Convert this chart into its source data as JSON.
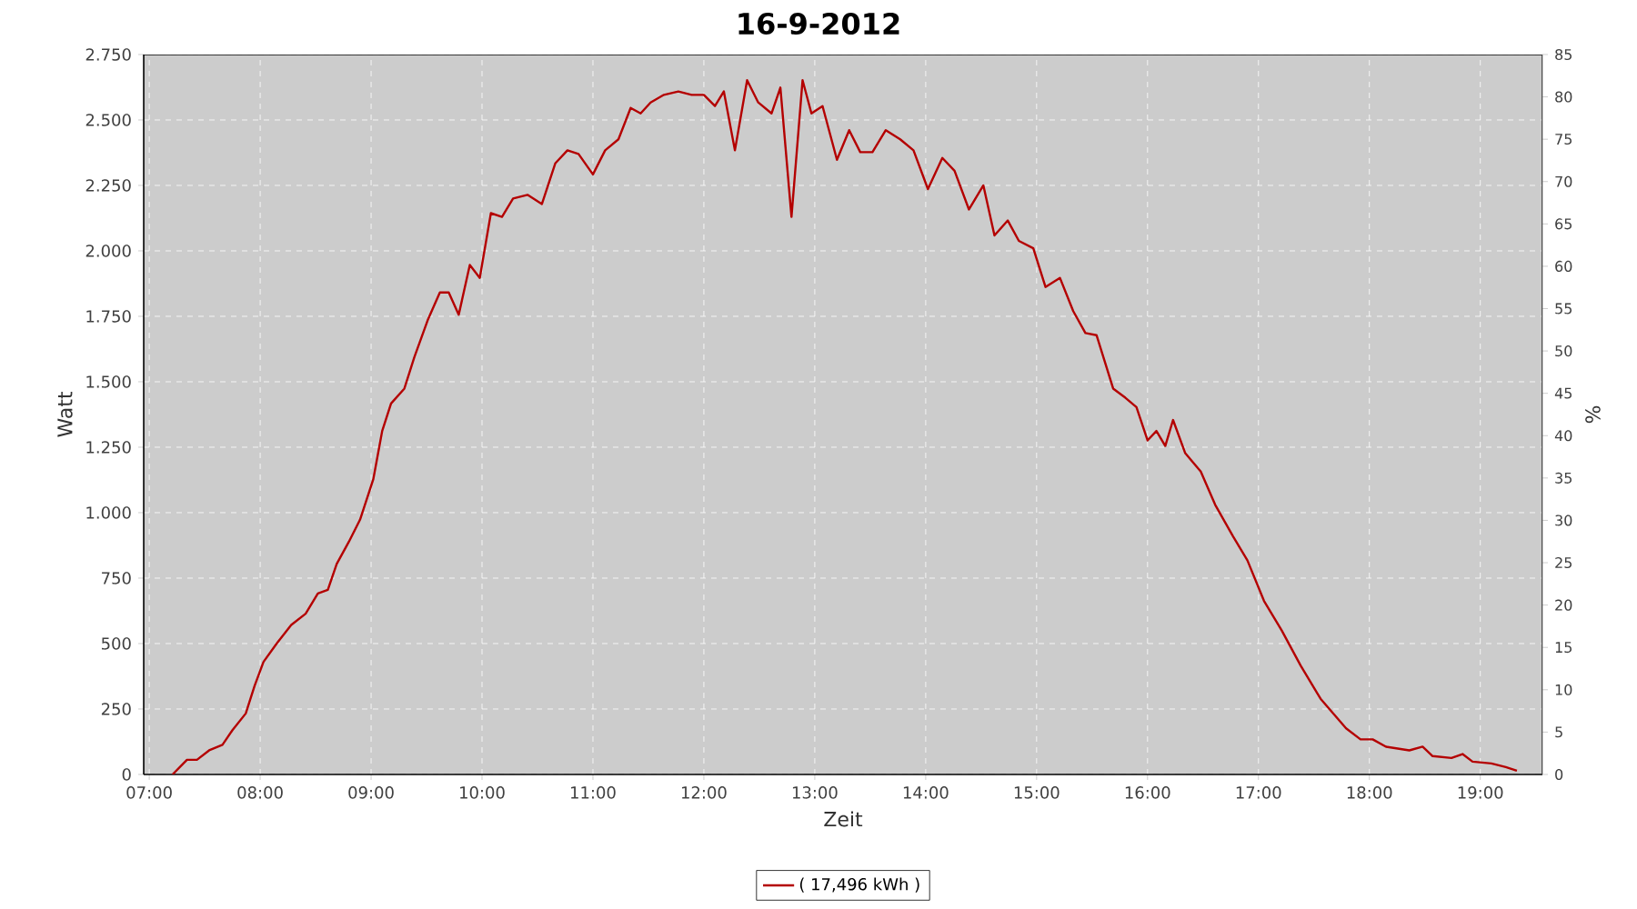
{
  "chart_data": {
    "type": "line",
    "title": "16-9-2012",
    "xlabel": "Zeit",
    "ylabel": "Watt",
    "y2label": "%",
    "x": [
      7.21,
      7.34,
      7.43,
      7.54,
      7.66,
      7.75,
      7.87,
      7.95,
      8.03,
      8.15,
      8.28,
      8.41,
      8.52,
      8.61,
      8.69,
      8.8,
      8.9,
      9.02,
      9.1,
      9.18,
      9.3,
      9.39,
      9.51,
      9.62,
      9.7,
      9.79,
      9.89,
      9.98,
      10.08,
      10.18,
      10.28,
      10.41,
      10.54,
      10.66,
      10.77,
      10.87,
      11.0,
      11.11,
      11.23,
      11.34,
      11.43,
      11.52,
      11.64,
      11.77,
      11.89,
      12.0,
      12.1,
      12.18,
      12.28,
      12.39,
      12.49,
      12.61,
      12.69,
      12.79,
      12.89,
      12.97,
      13.07,
      13.2,
      13.31,
      13.41,
      13.52,
      13.64,
      13.77,
      13.89,
      14.02,
      14.15,
      14.26,
      14.39,
      14.52,
      14.62,
      14.74,
      14.84,
      14.97,
      15.08,
      15.21,
      15.33,
      15.44,
      15.54,
      15.69,
      15.8,
      15.9,
      16.0,
      16.08,
      16.16,
      16.23,
      16.34,
      16.48,
      16.61,
      16.77,
      16.9,
      17.05,
      17.21,
      17.38,
      17.56,
      17.79,
      17.92,
      18.03,
      18.15,
      18.36,
      18.48,
      18.57,
      18.74,
      18.84,
      18.93,
      19.1,
      19.23,
      19.33
    ],
    "series": [
      {
        "name": "( 17,496 kWh )",
        "color": "#b40000",
        "values": [
          0,
          56,
          56,
          92,
          113,
          169,
          233,
          339,
          430,
          501,
          571,
          614,
          691,
          705,
          804,
          889,
          973,
          1128,
          1312,
          1417,
          1474,
          1594,
          1735,
          1841,
          1841,
          1756,
          1946,
          1897,
          2144,
          2130,
          2200,
          2214,
          2179,
          2334,
          2384,
          2370,
          2292,
          2384,
          2426,
          2546,
          2525,
          2567,
          2596,
          2609,
          2596,
          2596,
          2553,
          2609,
          2384,
          2652,
          2567,
          2525,
          2624,
          2130,
          2652,
          2525,
          2553,
          2348,
          2461,
          2377,
          2377,
          2461,
          2426,
          2384,
          2236,
          2355,
          2306,
          2158,
          2250,
          2059,
          2116,
          2038,
          2010,
          1862,
          1897,
          1770,
          1686,
          1678,
          1474,
          1439,
          1403,
          1276,
          1312,
          1255,
          1354,
          1227,
          1157,
          1030,
          910,
          818,
          663,
          550,
          416,
          289,
          176,
          134,
          134,
          106,
          92,
          106,
          70,
          63,
          78,
          49,
          42,
          28,
          14
        ]
      }
    ],
    "xlim": [
      6.95,
      19.56
    ],
    "xticks": [
      {
        "value": 7,
        "label": "07:00"
      },
      {
        "value": 8,
        "label": "08:00"
      },
      {
        "value": 9,
        "label": "09:00"
      },
      {
        "value": 10,
        "label": "10:00"
      },
      {
        "value": 11,
        "label": "11:00"
      },
      {
        "value": 12,
        "label": "12:00"
      },
      {
        "value": 13,
        "label": "13:00"
      },
      {
        "value": 14,
        "label": "14:00"
      },
      {
        "value": 15,
        "label": "15:00"
      },
      {
        "value": 16,
        "label": "16:00"
      },
      {
        "value": 17,
        "label": "17:00"
      },
      {
        "value": 18,
        "label": "18:00"
      },
      {
        "value": 19,
        "label": "19:00"
      }
    ],
    "ylim": [
      0,
      2750
    ],
    "yticks": [
      0,
      250,
      500,
      750,
      {
        "value": 1000,
        "label": "1.000"
      },
      {
        "value": 1250,
        "label": "1.250"
      },
      {
        "value": 1500,
        "label": "1.500"
      },
      {
        "value": 1750,
        "label": "1.750"
      },
      {
        "value": 2000,
        "label": "2.000"
      },
      {
        "value": 2250,
        "label": "2.250"
      },
      {
        "value": 2500,
        "label": "2.500"
      },
      {
        "value": 2750,
        "label": "2.750"
      }
    ],
    "y2lim": [
      0,
      85
    ],
    "y2ticks": [
      0,
      5,
      10,
      15,
      20,
      25,
      30,
      35,
      40,
      45,
      50,
      55,
      60,
      65,
      70,
      75,
      80,
      85
    ],
    "grid": true,
    "legend": "bottom",
    "marker": "none",
    "line_style": "solid"
  }
}
